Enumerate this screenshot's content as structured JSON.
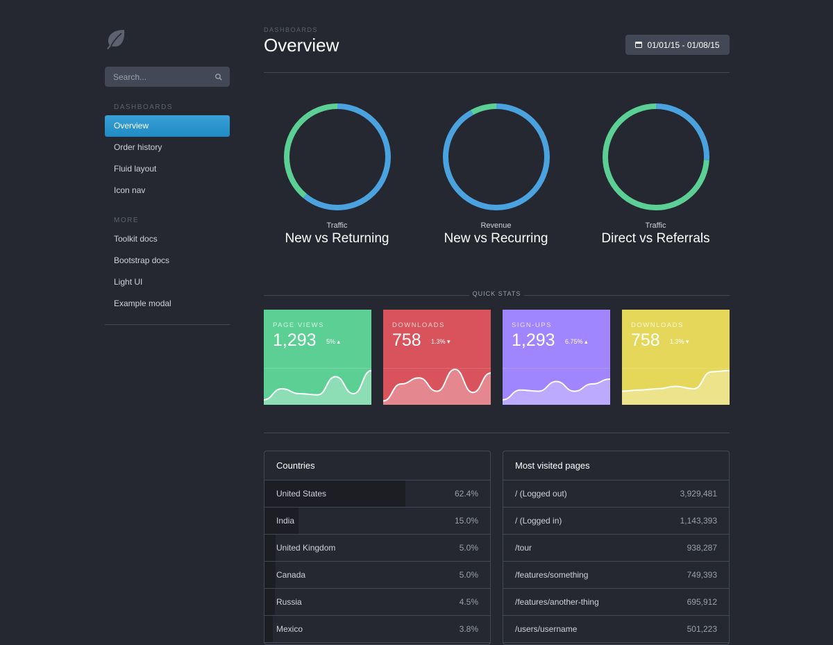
{
  "colors": {
    "background": "#252830",
    "accent": "#1997c6",
    "blue": "#4aa3df",
    "green": "#5ccf95",
    "red": "#d9535d",
    "purple": "#9f86ff",
    "yellow": "#e4d75a"
  },
  "sidebar": {
    "logo_icon": "leaf-icon",
    "search": {
      "placeholder": "Search...",
      "icon": "search-icon"
    },
    "groups": [
      {
        "header": "DASHBOARDS",
        "items": [
          "Overview",
          "Order history",
          "Fluid layout",
          "Icon nav"
        ],
        "active": "Overview"
      },
      {
        "header": "MORE",
        "items": [
          "Toolkit docs",
          "Bootstrap docs",
          "Light UI",
          "Example modal"
        ]
      }
    ]
  },
  "header": {
    "breadcrumb": "DASHBOARDS",
    "title": "Overview",
    "date_range": "01/01/15 - 01/08/15",
    "date_icon": "calendar-icon"
  },
  "donuts": [
    {
      "label": "Traffic",
      "title": "New vs Returning",
      "segments": [
        {
          "name": "blue",
          "pct": 0.61,
          "color": "#4aa3df"
        },
        {
          "name": "green",
          "pct": 0.39,
          "color": "#5ccf95"
        }
      ]
    },
    {
      "label": "Revenue",
      "title": "New vs Recurring",
      "segments": [
        {
          "name": "blue",
          "pct": 0.92,
          "color": "#4aa3df"
        },
        {
          "name": "green",
          "pct": 0.08,
          "color": "#5ccf95"
        }
      ]
    },
    {
      "label": "Traffic",
      "title": "Direct vs Referrals",
      "segments": [
        {
          "name": "blue",
          "pct": 0.26,
          "color": "#4aa3df"
        },
        {
          "name": "green",
          "pct": 0.74,
          "color": "#5ccf95"
        }
      ]
    }
  ],
  "quick_stats_label": "QUICK STATS",
  "stats": [
    {
      "label": "PAGE VIEWS",
      "value": "1,293",
      "delta": "5%",
      "direction": "up",
      "color": "#5ccf95",
      "spark": [
        3,
        12,
        8,
        7,
        22,
        8,
        27
      ]
    },
    {
      "label": "DOWNLOADS",
      "value": "758",
      "delta": "1.3%",
      "direction": "down",
      "color": "#d9535d",
      "spark": [
        2,
        16,
        21,
        10,
        28,
        9,
        25
      ]
    },
    {
      "label": "SIGN-UPS",
      "value": "1,293",
      "delta": "6.75%",
      "direction": "up",
      "color": "#9f86ff",
      "spark": [
        3,
        11,
        10,
        18,
        10,
        16,
        20
      ]
    },
    {
      "label": "DOWNLOADS",
      "value": "758",
      "delta": "1.3%",
      "direction": "down",
      "color": "#e4d75a",
      "spark": [
        10,
        11,
        12,
        14,
        12,
        26,
        27
      ]
    }
  ],
  "countries": {
    "title": "Countries",
    "rows": [
      {
        "name": "United States",
        "value": "62.4%",
        "fraction": 0.624
      },
      {
        "name": "India",
        "value": "15.0%",
        "fraction": 0.15
      },
      {
        "name": "United Kingdom",
        "value": "5.0%",
        "fraction": 0.05
      },
      {
        "name": "Canada",
        "value": "5.0%",
        "fraction": 0.05
      },
      {
        "name": "Russia",
        "value": "4.5%",
        "fraction": 0.045
      },
      {
        "name": "Mexico",
        "value": "3.8%",
        "fraction": 0.038
      }
    ]
  },
  "pages": {
    "title": "Most visited pages",
    "rows": [
      {
        "name": "/ (Logged out)",
        "value": "3,929,481"
      },
      {
        "name": "/ (Logged in)",
        "value": "1,143,393"
      },
      {
        "name": "/tour",
        "value": "938,287"
      },
      {
        "name": "/features/something",
        "value": "749,393"
      },
      {
        "name": "/features/another-thing",
        "value": "695,912"
      },
      {
        "name": "/users/username",
        "value": "501,223"
      }
    ]
  }
}
